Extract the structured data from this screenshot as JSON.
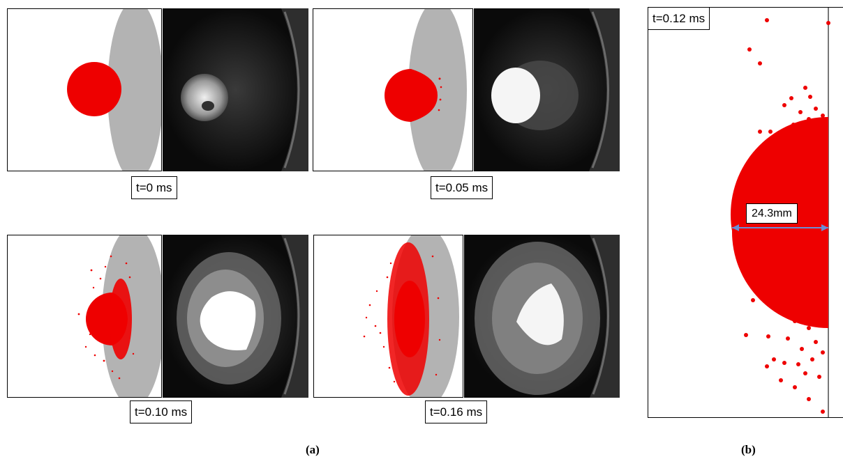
{
  "figure": {
    "panel_a": {
      "caption": "(a)",
      "frames": [
        {
          "time_label": "t=0 ms"
        },
        {
          "time_label": "t=0.05 ms"
        },
        {
          "time_label": "t=0.10 ms"
        },
        {
          "time_label": "t=0.16 ms"
        }
      ]
    },
    "panel_b": {
      "caption": "(b)",
      "time_label": "t=0.12 ms",
      "dimension_label": "24.3mm"
    }
  },
  "colors": {
    "droplet": "#ee0000",
    "target_plate": "#b3b3b3",
    "dimension_arrow": "#6b8fd6",
    "photo_background": "#0a0a0a"
  }
}
